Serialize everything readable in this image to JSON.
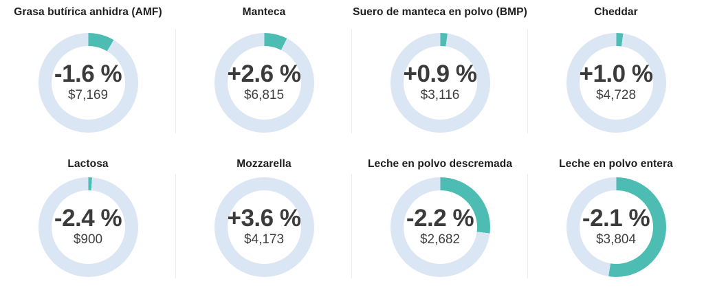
{
  "page": {
    "background": "#ffffff"
  },
  "chart_data": {
    "type": "pie",
    "subtype": "donut-gauge-grid",
    "description": "Eight donut gauges showing price change percentage and price (USD) for dairy products",
    "layout": {
      "rows": 2,
      "cols": 4,
      "ring_start": "top",
      "ring_direction": "clockwise",
      "legend": "none",
      "grid": "off"
    },
    "colors": {
      "accent_teal": "#4dbcb2",
      "ring_light_blue": "#dbe6f4",
      "percent_text": "#3b3b3b",
      "value_text": "#404040",
      "title_text": "#1d1d1d",
      "separator": "#ededed"
    },
    "charts": [
      {
        "title": "Grasa butírica anhidra (AMF)",
        "change_label": "-1.6 %",
        "change_pct": -1.6,
        "value_label": "$7,169",
        "value_usd": 7169,
        "ring_fill_pct": 8.5
      },
      {
        "title": "Manteca",
        "change_label": "+2.6 %",
        "change_pct": 2.6,
        "value_label": "$6,815",
        "value_usd": 6815,
        "ring_fill_pct": 7.5
      },
      {
        "title": "Suero de manteca en polvo (BMP)",
        "change_label": "+0.9 %",
        "change_pct": 0.9,
        "value_label": "$3,116",
        "value_usd": 3116,
        "ring_fill_pct": 2.3
      },
      {
        "title": "Cheddar",
        "change_label": "+1.0 %",
        "change_pct": 1.0,
        "value_label": "$4,728",
        "value_usd": 4728,
        "ring_fill_pct": 2.2
      },
      {
        "title": "Lactosa",
        "change_label": "-2.4 %",
        "change_pct": -2.4,
        "value_label": "$900",
        "value_usd": 900,
        "ring_fill_pct": 1.2
      },
      {
        "title": "Mozzarella",
        "change_label": "+3.6 %",
        "change_pct": 3.6,
        "value_label": "$4,173",
        "value_usd": 4173,
        "ring_fill_pct": 0
      },
      {
        "title": "Leche en polvo descremada",
        "change_label": "-2.2 %",
        "change_pct": -2.2,
        "value_label": "$2,682",
        "value_usd": 2682,
        "ring_fill_pct": 27
      },
      {
        "title": "Leche en polvo entera",
        "change_label": "-2.1 %",
        "change_pct": -2.1,
        "value_label": "$3,804",
        "value_usd": 3804,
        "ring_fill_pct": 52.5
      }
    ]
  }
}
